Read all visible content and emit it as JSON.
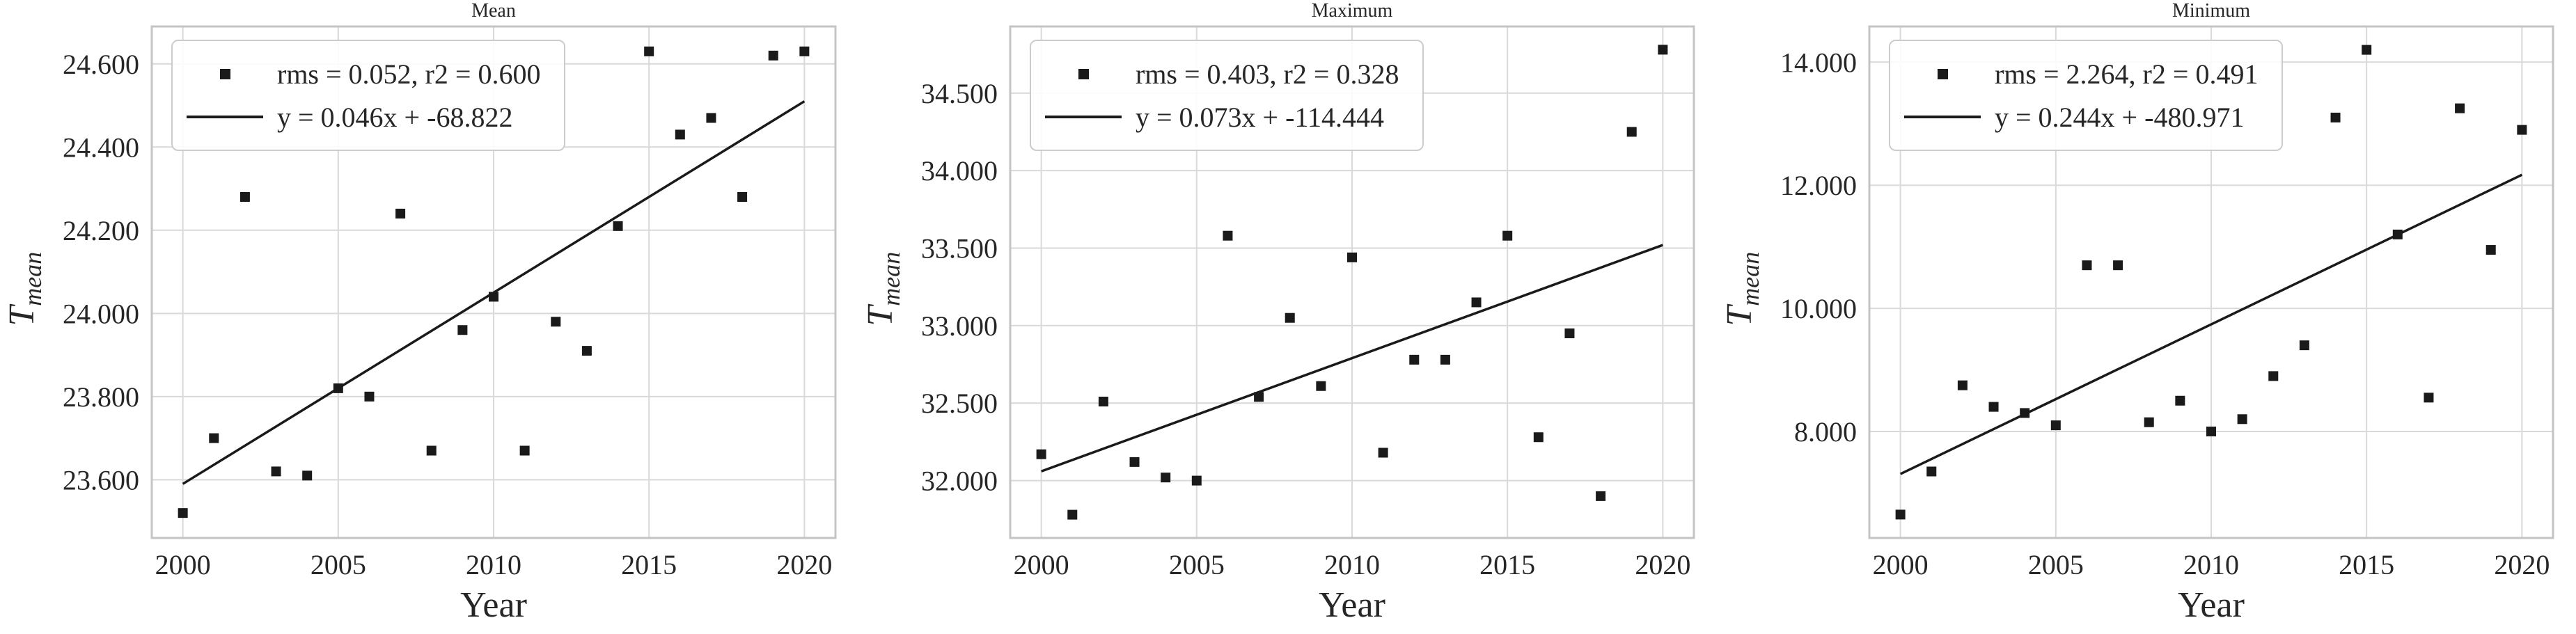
{
  "figure": {
    "xlabel": "Year",
    "ylabel_main": "T",
    "ylabel_sub": "mean"
  },
  "colors": {
    "background": "#ffffff",
    "marker": "#1a1a1a",
    "line": "#1a1a1a",
    "grid": "#d9d9d9",
    "spine": "#c4c4c4",
    "text": "#262626",
    "legend_border": "#cccccc"
  },
  "chart_data": [
    {
      "type": "scatter",
      "title": "Mean",
      "xlabel": "Year",
      "ylabel": "T_mean",
      "legend": {
        "scatter_label": "rms = 0.052, r2 = 0.600",
        "line_label": "y = 0.046x + -68.822"
      },
      "legend_position": "upper left",
      "grid": true,
      "x": [
        2000,
        2001,
        2002,
        2003,
        2004,
        2005,
        2006,
        2007,
        2008,
        2009,
        2010,
        2011,
        2012,
        2013,
        2014,
        2015,
        2016,
        2017,
        2018,
        2019,
        2020
      ],
      "y": [
        23.52,
        23.7,
        24.28,
        23.62,
        23.61,
        23.82,
        23.8,
        24.24,
        23.67,
        23.96,
        24.04,
        23.67,
        23.98,
        23.91,
        24.21,
        24.63,
        24.43,
        24.47,
        24.28,
        24.62,
        24.63
      ],
      "trendline": {
        "slope": 0.046,
        "intercept": -68.822,
        "x_start": 2000,
        "y_start": 23.59,
        "x_end": 2020,
        "y_end": 24.51
      },
      "xlim": [
        1999,
        2021
      ],
      "ylim": [
        23.46,
        24.69
      ],
      "xticks": [
        2000,
        2005,
        2010,
        2015,
        2020
      ],
      "xtick_labels": [
        "2000",
        "2005",
        "2010",
        "2015",
        "2020"
      ],
      "yticks": [
        23.6,
        23.8,
        24.0,
        24.2,
        24.4,
        24.6
      ],
      "ytick_labels": [
        "23.600",
        "23.800",
        "24.000",
        "24.200",
        "24.400",
        "24.600"
      ]
    },
    {
      "type": "scatter",
      "title": "Maximum",
      "xlabel": "Year",
      "ylabel": "T_mean",
      "legend": {
        "scatter_label": "rms = 0.403, r2 = 0.328",
        "line_label": "y = 0.073x + -114.444"
      },
      "legend_position": "upper left",
      "grid": true,
      "x": [
        2000,
        2001,
        2002,
        2003,
        2004,
        2005,
        2006,
        2007,
        2008,
        2009,
        2010,
        2011,
        2012,
        2013,
        2014,
        2015,
        2016,
        2017,
        2018,
        2019,
        2020
      ],
      "y": [
        32.17,
        31.78,
        32.51,
        32.12,
        32.02,
        32.0,
        33.58,
        32.54,
        33.05,
        32.61,
        33.44,
        32.18,
        32.78,
        32.78,
        33.15,
        33.58,
        32.28,
        32.95,
        31.9,
        34.25,
        34.78
      ],
      "trendline": {
        "slope": 0.073,
        "intercept": -114.444,
        "x_start": 2000,
        "y_start": 32.06,
        "x_end": 2020,
        "y_end": 33.52
      },
      "xlim": [
        1999,
        2021
      ],
      "ylim": [
        31.63,
        34.93
      ],
      "xticks": [
        2000,
        2005,
        2010,
        2015,
        2020
      ],
      "xtick_labels": [
        "2000",
        "2005",
        "2010",
        "2015",
        "2020"
      ],
      "yticks": [
        32.0,
        32.5,
        33.0,
        33.5,
        34.0,
        34.5
      ],
      "ytick_labels": [
        "32.000",
        "32.500",
        "33.000",
        "33.500",
        "34.000",
        "34.500"
      ]
    },
    {
      "type": "scatter",
      "title": "Minimum",
      "xlabel": "Year",
      "ylabel": "T_mean",
      "legend": {
        "scatter_label": "rms = 2.264, r2 = 0.491",
        "line_label": "y = 0.244x + -480.971"
      },
      "legend_position": "upper left",
      "grid": true,
      "x": [
        2000,
        2001,
        2002,
        2003,
        2004,
        2005,
        2006,
        2007,
        2008,
        2009,
        2010,
        2011,
        2012,
        2013,
        2014,
        2015,
        2016,
        2017,
        2018,
        2019,
        2020
      ],
      "y": [
        6.65,
        7.35,
        8.75,
        8.4,
        8.3,
        8.1,
        10.7,
        10.7,
        8.15,
        8.5,
        8.0,
        8.2,
        8.9,
        9.4,
        13.1,
        14.2,
        11.2,
        8.55,
        13.25,
        10.95,
        12.9
      ],
      "trendline": {
        "slope": 0.244,
        "intercept": -480.971,
        "x_start": 2000,
        "y_start": 7.31,
        "x_end": 2020,
        "y_end": 12.17
      },
      "xlim": [
        1999,
        2021
      ],
      "ylim": [
        6.27,
        14.58
      ],
      "xticks": [
        2000,
        2005,
        2010,
        2015,
        2020
      ],
      "xtick_labels": [
        "2000",
        "2005",
        "2010",
        "2015",
        "2020"
      ],
      "yticks": [
        8.0,
        10.0,
        12.0,
        14.0
      ],
      "ytick_labels": [
        "8.000",
        "10.000",
        "12.000",
        "14.000"
      ]
    }
  ]
}
